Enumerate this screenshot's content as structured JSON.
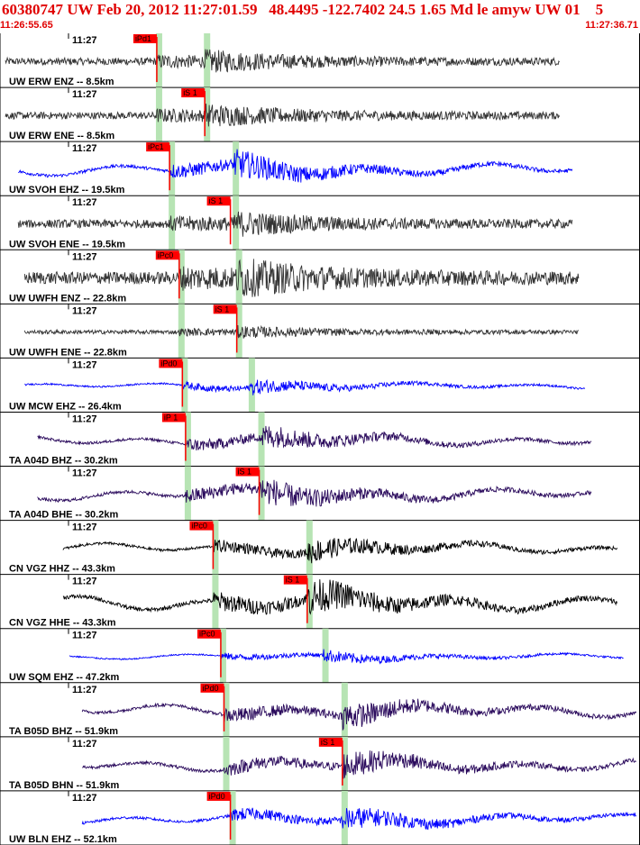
{
  "header": {
    "title": "60380747 UW Feb 20, 2012 11:27:01.59   48.4495 -122.7402 24.5 1.65 Md le amyw UW 01    5",
    "time_start": "11:26:55.65",
    "time_end": "11:27:36.71"
  },
  "colors": {
    "title": "#e00000",
    "pick_flag": "#ff0000",
    "pick_window": "#b7e4b4",
    "blue": "#0000ff",
    "dark": "#333333",
    "purple": "#2a0a5c",
    "black": "#000000"
  },
  "panels": [
    {
      "tick": "11:27",
      "label": "UW ERW ENZ -- 8.5km",
      "color": "dark",
      "pick": "iPd1",
      "pick_pos": 0.245,
      "window_pos": [
        0.245,
        0.32
      ],
      "trace_start": 0.0,
      "trace_end": 0.88,
      "amp": 0.22
    },
    {
      "tick": "11:27",
      "label": "UW ERW ENE -- 8.5km",
      "color": "dark",
      "pick": "iS 1",
      "pick_pos": 0.32,
      "window_pos": [
        0.245,
        0.32
      ],
      "trace_start": 0.0,
      "trace_end": 0.88,
      "amp": 0.22
    },
    {
      "tick": "11:27",
      "label": "UW SVOH EHZ -- 19.5km",
      "color": "blue",
      "pick": "iPc1",
      "pick_pos": 0.265,
      "window_pos": [
        0.265,
        0.365
      ],
      "trace_start": 0.02,
      "trace_end": 0.9,
      "amp": 0.35
    },
    {
      "tick": "11:27",
      "label": "UW SVOH ENE -- 19.5km",
      "color": "dark",
      "pick": "iS 1",
      "pick_pos": 0.36,
      "window_pos": [
        0.265,
        0.365
      ],
      "trace_start": 0.02,
      "trace_end": 0.9,
      "amp": 0.25
    },
    {
      "tick": "11:27",
      "label": "UW UWFH ENZ -- 22.8km",
      "color": "dark",
      "pick": "iPc0",
      "pick_pos": 0.28,
      "window_pos": [
        0.28,
        0.37
      ],
      "trace_start": 0.03,
      "trace_end": 0.91,
      "amp": 0.38
    },
    {
      "tick": "11:27",
      "label": "UW UWFH ENE -- 22.8km",
      "color": "dark",
      "pick": "iS 1",
      "pick_pos": 0.37,
      "window_pos": [
        0.28,
        0.37
      ],
      "trace_start": 0.03,
      "trace_end": 0.91,
      "amp": 0.12
    },
    {
      "tick": "11:27",
      "label": "UW MCW EHZ -- 26.4km",
      "color": "blue",
      "pick": "iPd0",
      "pick_pos": 0.285,
      "window_pos": [
        0.285,
        0.39
      ],
      "trace_start": 0.03,
      "trace_end": 0.92,
      "amp": 0.18
    },
    {
      "tick": "11:27",
      "label": "TA A04D BHZ -- 30.2km",
      "color": "purple",
      "pick": "iP 1",
      "pick_pos": 0.29,
      "window_pos": [
        0.29,
        0.405
      ],
      "trace_start": 0.05,
      "trace_end": 0.93,
      "amp": 0.3
    },
    {
      "tick": "11:27",
      "label": "TA A04D BHE -- 30.2km",
      "color": "purple",
      "pick": "iS 1",
      "pick_pos": 0.405,
      "window_pos": [
        0.29,
        0.405
      ],
      "trace_start": 0.05,
      "trace_end": 0.93,
      "amp": 0.35
    },
    {
      "tick": "11:27",
      "label": "CN VGZ HHZ -- 43.3km",
      "color": "black",
      "pick": "iPc0",
      "pick_pos": 0.333,
      "window_pos": [
        0.333,
        0.48
      ],
      "trace_start": 0.09,
      "trace_end": 0.97,
      "amp": 0.3
    },
    {
      "tick": "11:27",
      "label": "CN VGZ HHE -- 43.3km",
      "color": "black",
      "pick": "iS 1",
      "pick_pos": 0.48,
      "window_pos": [
        0.333,
        0.48
      ],
      "trace_start": 0.09,
      "trace_end": 0.97,
      "amp": 0.45
    },
    {
      "tick": "11:27",
      "label": "UW SQM EHZ -- 47.2km",
      "color": "blue",
      "pick": "iPc0",
      "pick_pos": 0.345,
      "window_pos": [
        0.345,
        0.505
      ],
      "trace_start": 0.1,
      "trace_end": 0.98,
      "amp": 0.16
    },
    {
      "tick": "11:27",
      "label": "TA B05D BHZ -- 51.9km",
      "color": "purple",
      "pick": "iPd0",
      "pick_pos": 0.35,
      "window_pos": [
        0.35,
        0.535
      ],
      "trace_start": 0.12,
      "trace_end": 1.0,
      "amp": 0.35
    },
    {
      "tick": "11:27",
      "label": "TA B05D BHN -- 51.9km",
      "color": "purple",
      "pick": "iS 1",
      "pick_pos": 0.535,
      "window_pos": [
        0.35,
        0.535
      ],
      "trace_start": 0.12,
      "trace_end": 1.0,
      "amp": 0.35
    },
    {
      "tick": "11:27",
      "label": "UW BLN EHZ -- 52.1km",
      "color": "blue",
      "pick": "iPd0",
      "pick_pos": 0.36,
      "window_pos": [
        0.36,
        0.535
      ],
      "trace_start": 0.12,
      "trace_end": 1.0,
      "amp": 0.3
    }
  ]
}
